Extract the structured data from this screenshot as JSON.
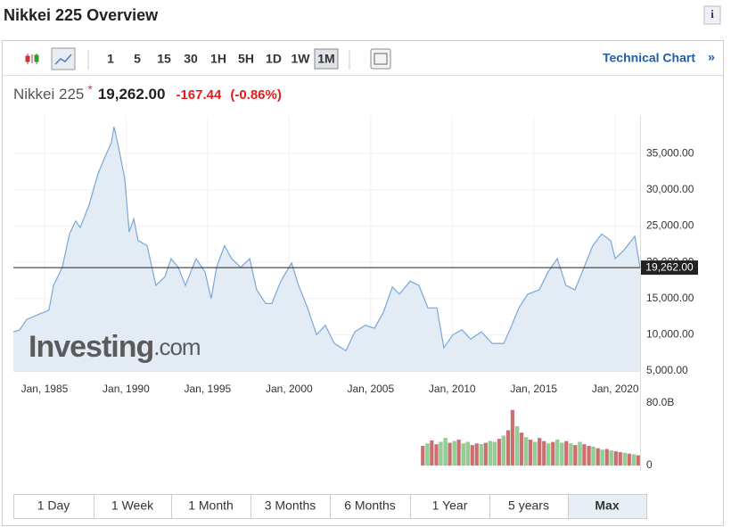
{
  "header": {
    "title": "Nikkei 225 Overview",
    "info": "i"
  },
  "toolbar": {
    "intervals": [
      "1",
      "5",
      "15",
      "30",
      "1H",
      "5H",
      "1D",
      "1W",
      "1M"
    ],
    "active": "1M",
    "link": "Technical Chart",
    "link_arrow": "»"
  },
  "quote": {
    "name": "Nikkei 225",
    "marker": "*",
    "price": "19,262.00",
    "change": "-167.44",
    "change_pct": "(-0.86%)"
  },
  "watermark": {
    "brand": "Investing",
    "domain": ".com"
  },
  "ranges": {
    "buttons": [
      "1 Day",
      "1 Week",
      "1 Month",
      "3 Months",
      "6 Months",
      "1 Year",
      "5 years",
      "Max"
    ],
    "active": "Max"
  },
  "chart_data": [
    {
      "type": "line",
      "color": "#7aa7d6",
      "fill": "#e3ecf5",
      "x": [
        1983.09,
        1983.47,
        1983.9,
        1984.73,
        1985.27,
        1985.55,
        1986.09,
        1986.53,
        1986.91,
        1987.19,
        1987.73,
        1988.28,
        1988.72,
        1989.1,
        1989.26,
        1989.48,
        1989.92,
        1990.19,
        1990.47,
        1990.74,
        1991.29,
        1991.83,
        1992.38,
        1992.76,
        1993.2,
        1993.64,
        1994.29,
        1994.84,
        1995.22,
        1995.55,
        1996.04,
        1996.48,
        1997.03,
        1997.58,
        1998.01,
        1998.56,
        1998.94,
        1999.49,
        2000.15,
        2000.58,
        2001.13,
        2001.68,
        2002.22,
        2002.77,
        2003.48,
        2004.03,
        2004.68,
        2005.23,
        2005.78,
        2006.33,
        2006.76,
        2007.42,
        2007.96,
        2008.51,
        2009.06,
        2009.49,
        2010.04,
        2010.59,
        2011.13,
        2011.79,
        2012.45,
        2013.16,
        2013.54,
        2014.09,
        2014.63,
        2015.34,
        2015.89,
        2016.44,
        2016.98,
        2017.53,
        2018.08,
        2018.62,
        2019.17,
        2019.72,
        2019.99,
        2020.54,
        2021.2,
        2021.52
      ],
      "values": [
        10400,
        10650,
        12100,
        12900,
        13400,
        16800,
        19300,
        23900,
        25700,
        24800,
        27900,
        32200,
        34600,
        36500,
        38700,
        36500,
        31600,
        24200,
        26000,
        23000,
        22300,
        16800,
        18000,
        20500,
        19300,
        16800,
        20500,
        18700,
        15000,
        19300,
        22300,
        20500,
        19300,
        20500,
        16200,
        14300,
        14300,
        17400,
        19900,
        16800,
        13700,
        10000,
        11300,
        8800,
        7800,
        10400,
        11300,
        10900,
        13100,
        16600,
        15600,
        17400,
        16800,
        13700,
        13700,
        8200,
        10000,
        10700,
        9400,
        10400,
        8800,
        8800,
        10700,
        13700,
        15600,
        16200,
        18700,
        20500,
        16800,
        16200,
        19300,
        22300,
        23900,
        23000,
        20500,
        21700,
        23600,
        19262
      ],
      "xlim": [
        1983.09,
        2021.52
      ],
      "ylim": [
        5000,
        40200
      ],
      "xticks": [
        {
          "value": 1985,
          "label": "Jan, 1985"
        },
        {
          "value": 1990,
          "label": "Jan, 1990"
        },
        {
          "value": 1995,
          "label": "Jan, 1995"
        },
        {
          "value": 2000,
          "label": "Jan, 2000"
        },
        {
          "value": 2005,
          "label": "Jan, 2005"
        },
        {
          "value": 2010,
          "label": "Jan, 2010"
        },
        {
          "value": 2015,
          "label": "Jan, 2015"
        },
        {
          "value": 2020,
          "label": "Jan, 2020"
        }
      ],
      "yticks": [
        {
          "value": 5000,
          "label": "5,000.00"
        },
        {
          "value": 10000,
          "label": "10,000.00"
        },
        {
          "value": 15000,
          "label": "15,000.00"
        },
        {
          "value": 20000,
          "label": "20,000.00"
        },
        {
          "value": 25000,
          "label": "25,000.00"
        },
        {
          "value": 30000,
          "label": "30,000.00"
        },
        {
          "value": 35000,
          "label": "35,000.00"
        }
      ],
      "last": {
        "value": 19262,
        "label": "19,262.00"
      },
      "grid": true
    },
    {
      "type": "bar",
      "xlim": [
        1983.09,
        2021.52
      ],
      "ylim": [
        0,
        80
      ],
      "yticks": [
        {
          "value": 80,
          "label": "80.0B"
        },
        0
      ],
      "x": [
        2008.2,
        2008.48,
        2008.75,
        2009.03,
        2009.3,
        2009.58,
        2009.85,
        2010.13,
        2010.4,
        2010.68,
        2010.95,
        2011.23,
        2011.5,
        2011.78,
        2012.05,
        2012.33,
        2012.6,
        2012.88,
        2013.15,
        2013.43,
        2013.7,
        2013.98,
        2014.25,
        2014.53,
        2014.8,
        2015.08,
        2015.35,
        2015.63,
        2015.9,
        2016.18,
        2016.45,
        2016.73,
        2017.0,
        2017.28,
        2017.55,
        2017.83,
        2018.1,
        2018.38,
        2018.65,
        2018.93,
        2019.2,
        2019.48,
        2019.75,
        2020.03,
        2020.3,
        2020.58,
        2020.85,
        2021.13,
        2021.4
      ],
      "values": [
        25,
        28,
        32,
        27,
        30,
        35,
        29,
        31,
        33,
        28,
        30,
        26,
        28,
        27,
        29,
        31,
        30,
        34,
        38,
        45,
        71,
        50,
        42,
        36,
        33,
        30,
        35,
        31,
        28,
        30,
        33,
        29,
        31,
        28,
        26,
        30,
        27,
        25,
        24,
        22,
        20,
        21,
        19,
        18,
        17,
        16,
        15,
        14,
        13
      ],
      "colors": [
        "#d46a6a",
        "#8fd18f",
        "#d46a6a",
        "#d46a6a",
        "#8fd18f",
        "#8fd18f",
        "#d46a6a",
        "#8fd18f",
        "#d46a6a",
        "#8fd18f",
        "#8fd18f",
        "#d46a6a",
        "#d46a6a",
        "#8fd18f",
        "#d46a6a",
        "#8fd18f",
        "#8fd18f",
        "#d46a6a",
        "#8fd18f",
        "#d46a6a",
        "#d46a6a",
        "#8fd18f",
        "#d46a6a",
        "#8fd18f",
        "#d46a6a",
        "#8fd18f",
        "#d46a6a",
        "#d46a6a",
        "#8fd18f",
        "#d46a6a",
        "#8fd18f",
        "#8fd18f",
        "#d46a6a",
        "#8fd18f",
        "#d46a6a",
        "#8fd18f",
        "#d46a6a",
        "#d46a6a",
        "#8fd18f",
        "#d46a6a",
        "#8fd18f",
        "#d46a6a",
        "#8fd18f",
        "#d46a6a",
        "#d46a6a",
        "#8fd18f",
        "#d46a6a",
        "#8fd18f",
        "#d46a6a"
      ]
    }
  ]
}
